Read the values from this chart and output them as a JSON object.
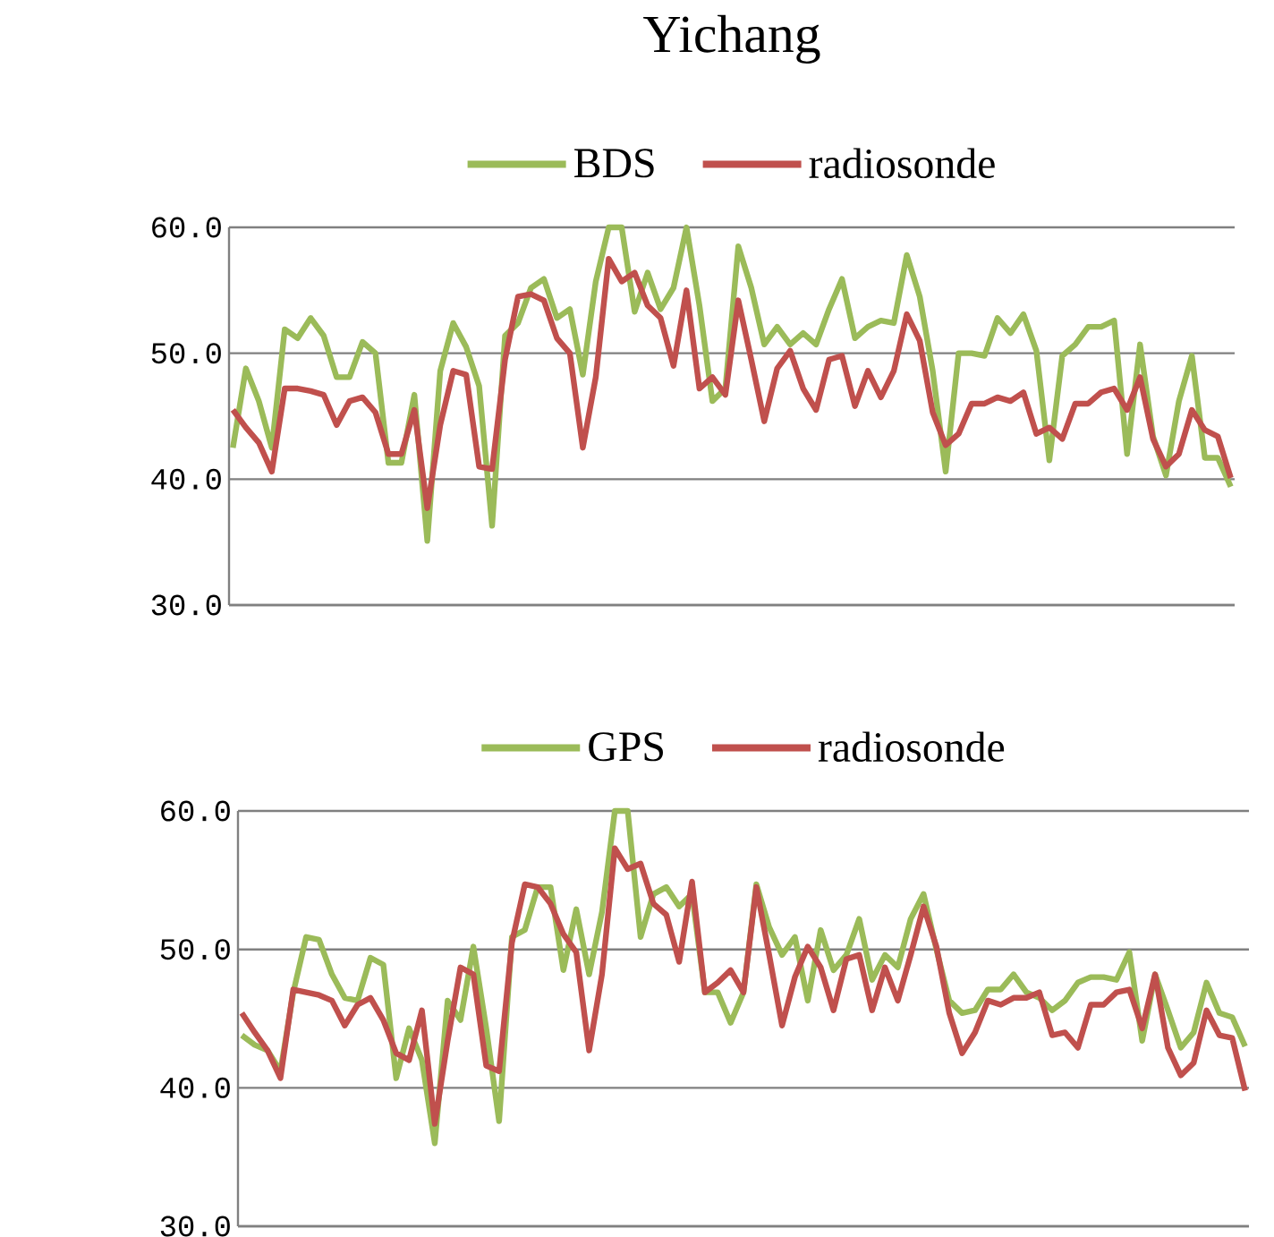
{
  "chart_data": [
    {
      "type": "line",
      "title": "Yichang",
      "legend": "top",
      "grid": "y",
      "categories": [
        null,
        null,
        null,
        null,
        null,
        null,
        null,
        null,
        null,
        null,
        null,
        null,
        null,
        null,
        null,
        null,
        null,
        null,
        null,
        null,
        null,
        null,
        null,
        null,
        null,
        null,
        null,
        null,
        null,
        null,
        null,
        null,
        null,
        null,
        null,
        null,
        null,
        null,
        null,
        null,
        null,
        null,
        null,
        null,
        null,
        null,
        null,
        null,
        null,
        null,
        null,
        null,
        null,
        null,
        null,
        null,
        null,
        null,
        null,
        null,
        null,
        null,
        null,
        null,
        null,
        null,
        null,
        null,
        null,
        null,
        null,
        null,
        null,
        null,
        null,
        null,
        null,
        null
      ],
      "ylim": [
        30,
        60
      ],
      "yticks": [
        {
          "value": 30,
          "label": "30.0"
        },
        {
          "value": 40,
          "label": "40.0"
        },
        {
          "value": 50,
          "label": "50.0"
        },
        {
          "value": 60,
          "label": "60.0"
        }
      ],
      "series": [
        {
          "name": "BDS",
          "color": "#9bbb59",
          "values": [
            42.5,
            48.8,
            46.2,
            42.5,
            51.9,
            51.2,
            52.8,
            51.4,
            48.1,
            48.1,
            50.9,
            50,
            41.3,
            41.3,
            46.7,
            35.1,
            48.6,
            52.4,
            50.5,
            47.4,
            36.3,
            51.4,
            52.4,
            55.2,
            55.9,
            52.8,
            53.5,
            48.3,
            55.7,
            60,
            60,
            53.3,
            56.4,
            53.5,
            55.2,
            60,
            53.8,
            46.2,
            47.2,
            58.5,
            55.2,
            50.7,
            52.1,
            50.7,
            51.6,
            50.7,
            53.5,
            55.9,
            51.2,
            52.1,
            52.6,
            52.4,
            57.8,
            54.5,
            48.6,
            40.6,
            50,
            50,
            49.8,
            52.8,
            51.6,
            53.1,
            50.2,
            41.5,
            49.8,
            50.7,
            52.1,
            52.1,
            52.6,
            42,
            50.7,
            43.4,
            40.3,
            46.2,
            49.8,
            41.7,
            41.7,
            39.4
          ]
        },
        {
          "name": "radiosonde",
          "color": "#c0504d",
          "values": [
            45.5,
            44.1,
            42.9,
            40.6,
            47.2,
            47.2,
            47.0,
            46.7,
            44.3,
            46.2,
            46.5,
            45.3,
            42,
            42,
            45.5,
            37.7,
            44.3,
            48.6,
            48.3,
            41,
            40.8,
            49.5,
            54.5,
            54.7,
            54.2,
            51.2,
            50,
            42.5,
            48.1,
            57.5,
            55.7,
            56.4,
            53.8,
            52.8,
            49,
            55,
            47.2,
            48.1,
            46.7,
            54.2,
            49.5,
            44.6,
            48.8,
            50.2,
            47.2,
            45.5,
            49.5,
            49.8,
            45.8,
            48.6,
            46.5,
            48.6,
            53.1,
            51,
            45.3,
            42.7,
            43.6,
            46,
            46,
            46.5,
            46.2,
            46.9,
            43.6,
            44.1,
            43.2,
            46,
            46,
            46.9,
            47.2,
            45.5,
            48.1,
            43.2,
            41,
            42,
            45.5,
            43.9,
            43.4,
            40.1
          ]
        }
      ]
    },
    {
      "type": "line",
      "legend": "top",
      "grid": "y",
      "categories": [
        null,
        null,
        null,
        null,
        null,
        null,
        null,
        null,
        null,
        null,
        null,
        null,
        null,
        null,
        null,
        null,
        null,
        null,
        null,
        null,
        null,
        null,
        null,
        null,
        null,
        null,
        null,
        null,
        null,
        null,
        null,
        null,
        null,
        null,
        null,
        null,
        null,
        null,
        null,
        null,
        null,
        null,
        null,
        null,
        null,
        null,
        null,
        null,
        null,
        null,
        null,
        null,
        null,
        null,
        null,
        null,
        null,
        null,
        null,
        null,
        null,
        null,
        null,
        null,
        null,
        null,
        null,
        null,
        null,
        null,
        null,
        null,
        null,
        null,
        null,
        null,
        null,
        null,
        null
      ],
      "ylim": [
        30,
        60
      ],
      "yticks": [
        {
          "value": 30,
          "label": "30.0"
        },
        {
          "value": 40,
          "label": "40.0"
        },
        {
          "value": 50,
          "label": "50.0"
        },
        {
          "value": 60,
          "label": "60.0"
        }
      ],
      "series": [
        {
          "name": "GPS",
          "color": "#9bbb59",
          "values": [
            43.8,
            43.1,
            42.7,
            41.2,
            46.9,
            50.9,
            50.7,
            48.2,
            46.5,
            46.3,
            49.4,
            48.9,
            40.7,
            44.3,
            42,
            36,
            46.3,
            44.9,
            50.2,
            44.3,
            37.6,
            50.9,
            51.4,
            54.5,
            54.5,
            48.5,
            52.9,
            48.2,
            52.7,
            60,
            60,
            50.9,
            54,
            54.5,
            53.1,
            54,
            46.9,
            46.9,
            44.7,
            46.9,
            54.7,
            51.6,
            49.6,
            50.9,
            46.3,
            51.4,
            48.5,
            49.6,
            52.2,
            47.8,
            49.6,
            48.7,
            52.2,
            54,
            50,
            46.3,
            45.4,
            45.6,
            47.1,
            47.1,
            48.2,
            46.9,
            46.5,
            45.6,
            46.3,
            47.6,
            48,
            48,
            47.8,
            49.8,
            43.4,
            48.2,
            45.6,
            42.9,
            44,
            47.6,
            45.4,
            45.1,
            43
          ]
        },
        {
          "name": "radiosonde",
          "color": "#c0504d",
          "values": [
            45.4,
            44,
            42.7,
            40.7,
            47.1,
            46.9,
            46.7,
            46.3,
            44.5,
            46,
            46.5,
            44.9,
            42.5,
            42,
            45.6,
            37.4,
            43.4,
            48.7,
            48.2,
            41.6,
            41.2,
            50.5,
            54.7,
            54.5,
            53.3,
            51.1,
            49.8,
            42.7,
            48.2,
            57.3,
            55.8,
            56.2,
            53.3,
            52.5,
            49.1,
            54.9,
            46.9,
            47.6,
            48.5,
            46.9,
            54.5,
            49.6,
            44.5,
            48,
            50.2,
            48.7,
            45.6,
            49.3,
            49.6,
            45.6,
            48.7,
            46.3,
            49.6,
            53.1,
            50.2,
            45.4,
            42.5,
            44,
            46.3,
            46,
            46.5,
            46.5,
            46.9,
            43.8,
            44,
            42.9,
            46,
            46,
            46.9,
            47.1,
            44.3,
            48.2,
            42.9,
            40.9,
            41.8,
            45.6,
            43.8,
            43.6,
            39.8
          ]
        }
      ]
    }
  ]
}
